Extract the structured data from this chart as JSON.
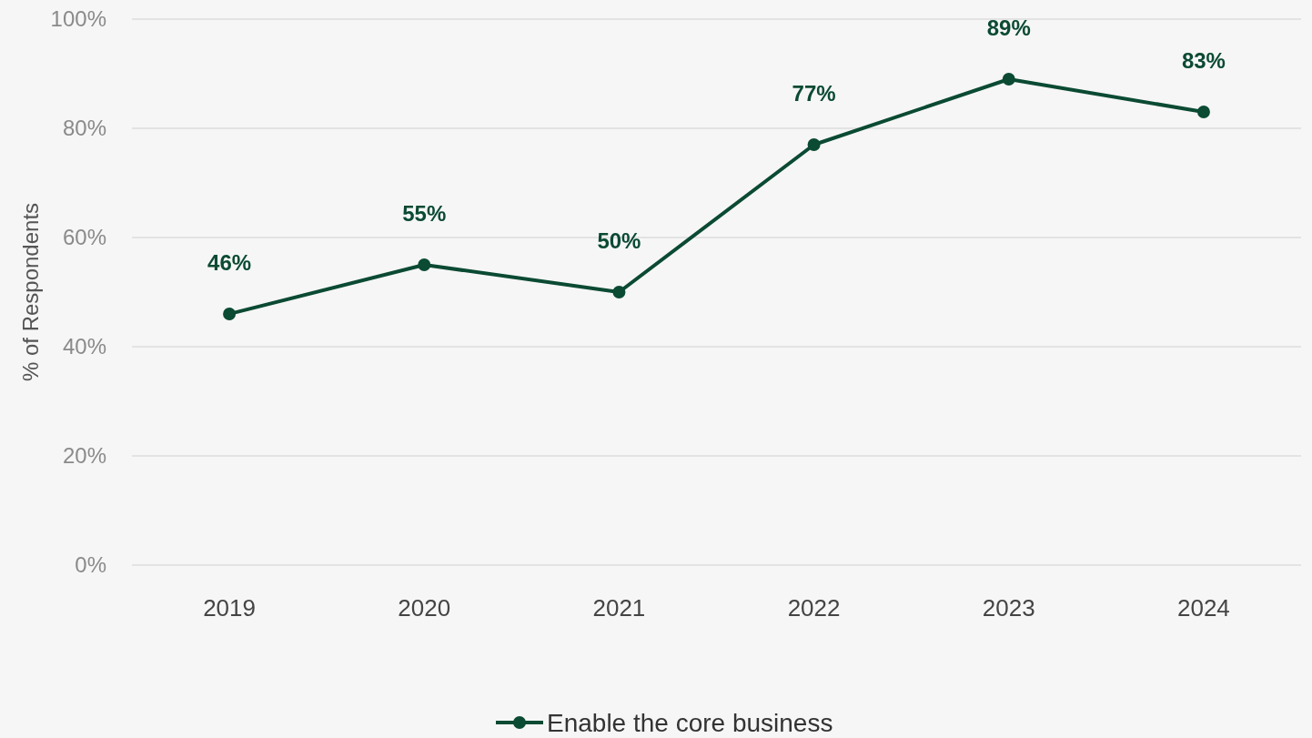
{
  "chart_data": {
    "type": "line",
    "ylabel": "% of Respondents",
    "categories": [
      "2019",
      "2020",
      "2021",
      "2022",
      "2023",
      "2024"
    ],
    "series": [
      {
        "name": "Enable the core business",
        "color": "#0b4a33",
        "values": [
          46,
          55,
          50,
          77,
          89,
          83
        ],
        "value_labels": [
          "46%",
          "55%",
          "50%",
          "77%",
          "89%",
          "83%"
        ]
      }
    ],
    "ylim": [
      0,
      100
    ],
    "yticks": [
      {
        "value": 0,
        "label": "0%"
      },
      {
        "value": 20,
        "label": "20%"
      },
      {
        "value": 40,
        "label": "40%"
      },
      {
        "value": 60,
        "label": "60%"
      },
      {
        "value": 80,
        "label": "80%"
      },
      {
        "value": 100,
        "label": "100%"
      }
    ],
    "grid": "y",
    "legend": "bottom",
    "marker": "circle",
    "line_style": "solid"
  }
}
